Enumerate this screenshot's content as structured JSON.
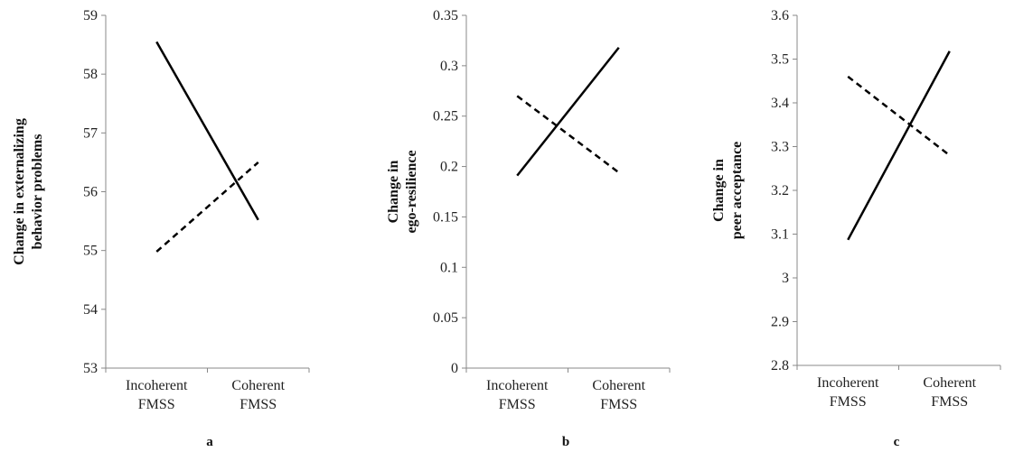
{
  "chart_data": [
    {
      "type": "line",
      "panel_label": "a",
      "ylabel_lines": [
        "Change in externalizing",
        "behavior problems"
      ],
      "ylim": [
        53,
        59
      ],
      "yticks": [
        "53",
        "54",
        "55",
        "56",
        "57",
        "58",
        "59"
      ],
      "categories": [
        [
          "Incoherent",
          "FMSS"
        ],
        [
          "Coherent",
          "FMSS"
        ]
      ],
      "series": [
        {
          "style": "solid",
          "values": [
            58.55,
            55.52
          ]
        },
        {
          "style": "dashed",
          "values": [
            54.98,
            56.5
          ]
        }
      ]
    },
    {
      "type": "line",
      "panel_label": "b",
      "ylabel_lines": [
        "Change in",
        "ego-resilience"
      ],
      "ylim": [
        0,
        0.35
      ],
      "yticks": [
        "0",
        "0.05",
        "0.1",
        "0.15",
        "0.2",
        "0.25",
        "0.3",
        "0.35"
      ],
      "categories": [
        [
          "Incoherent",
          "FMSS"
        ],
        [
          "Coherent",
          "FMSS"
        ]
      ],
      "series": [
        {
          "style": "solid",
          "values": [
            0.191,
            0.318
          ]
        },
        {
          "style": "dashed",
          "values": [
            0.27,
            0.194
          ]
        }
      ]
    },
    {
      "type": "line",
      "panel_label": "c",
      "ylabel_lines": [
        "Change in",
        "peer acceptance"
      ],
      "ylim": [
        2.8,
        3.6
      ],
      "yticks": [
        "2.8",
        "2.9",
        "3",
        "3.1",
        "3.2",
        "3.3",
        "3.4",
        "3.5",
        "3.6"
      ],
      "categories": [
        [
          "Incoherent",
          "FMSS"
        ],
        [
          "Coherent",
          "FMSS"
        ]
      ],
      "series": [
        {
          "style": "solid",
          "values": [
            3.087,
            3.518
          ]
        },
        {
          "style": "dashed",
          "values": [
            3.46,
            3.28
          ]
        }
      ]
    }
  ]
}
